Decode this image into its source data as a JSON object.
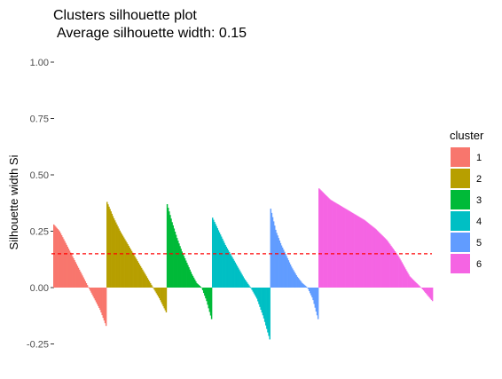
{
  "chart_data": {
    "type": "bar",
    "title": "Clusters silhouette plot",
    "subtitle": "Average silhouette width: 0.15",
    "xlabel": "",
    "ylabel": "Silhouette width Si",
    "ylim": [
      -0.3,
      1.05
    ],
    "yticks": [
      1.0,
      0.75,
      0.5,
      0.25,
      0.0,
      -0.25
    ],
    "ytick_labels": [
      "1.00",
      "0.75",
      "0.50",
      "0.25",
      "0.00",
      "-0.25"
    ],
    "grid": false,
    "average_line": {
      "value": 0.15,
      "style": "dashed",
      "color": "#ff0000"
    },
    "legend": {
      "title": "cluster",
      "position": "right"
    },
    "series": [
      {
        "name": "1",
        "color": "#F8766D",
        "count": 54,
        "values": [
          0.28,
          0.25,
          0.2,
          0.15,
          0.1,
          0.05,
          0.0,
          -0.05,
          -0.1,
          -0.17
        ]
      },
      {
        "name": "2",
        "color": "#B79F00",
        "count": 61,
        "values": [
          0.38,
          0.31,
          0.25,
          0.2,
          0.15,
          0.1,
          0.05,
          0.0,
          -0.05,
          -0.11
        ]
      },
      {
        "name": "3",
        "color": "#00BA38",
        "count": 46,
        "values": [
          0.37,
          0.29,
          0.22,
          0.16,
          0.11,
          0.06,
          0.02,
          0.0,
          -0.06,
          -0.14
        ]
      },
      {
        "name": "4",
        "color": "#00BFC4",
        "count": 59,
        "values": [
          0.31,
          0.25,
          0.19,
          0.14,
          0.09,
          0.04,
          0.0,
          -0.05,
          -0.13,
          -0.23
        ]
      },
      {
        "name": "5",
        "color": "#619CFF",
        "count": 49,
        "values": [
          0.35,
          0.25,
          0.19,
          0.14,
          0.09,
          0.05,
          0.02,
          0.0,
          -0.05,
          -0.14
        ]
      },
      {
        "name": "6",
        "color": "#F564E3",
        "count": 116,
        "values": [
          0.44,
          0.39,
          0.36,
          0.33,
          0.3,
          0.26,
          0.21,
          0.14,
          0.05,
          0.0,
          -0.06
        ]
      }
    ]
  }
}
